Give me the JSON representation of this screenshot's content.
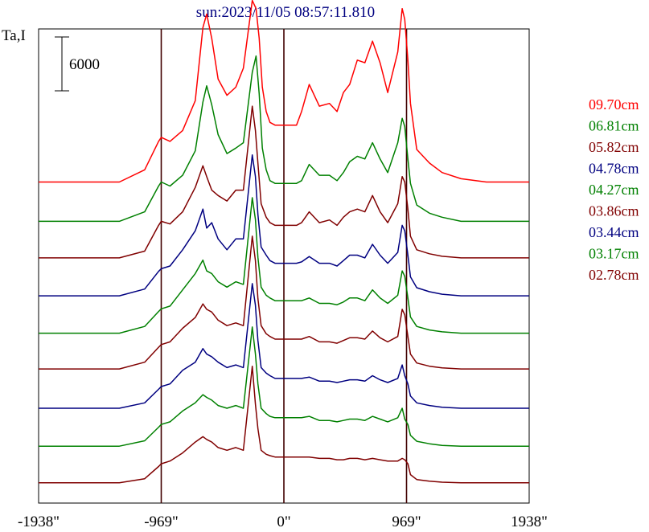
{
  "chart_data": {
    "type": "line",
    "title": "sun:2023/11/05 08:57:11.810",
    "ylabel": "Ta,I",
    "scale_bar_label": "6000",
    "xlim": [
      -1938,
      1938
    ],
    "x_ticks": [
      {
        "value": -1938,
        "label": "-1938\""
      },
      {
        "value": -969,
        "label": "-969\""
      },
      {
        "value": 0,
        "label": "0\""
      },
      {
        "value": 969,
        "label": "969\""
      },
      {
        "value": 1938,
        "label": "1938\""
      }
    ],
    "vertical_reference_lines": [
      -969,
      0,
      969
    ],
    "series": [
      {
        "name": "09.70cm",
        "color": "#ff0000",
        "x": [
          -1938,
          -1300,
          -1100,
          -990,
          -969,
          -900,
          -800,
          -700,
          -640,
          -610,
          -570,
          -520,
          -450,
          -380,
          -320,
          -250,
          -220,
          -195,
          -170,
          -140,
          -110,
          -70,
          -40,
          0,
          40,
          100,
          140,
          200,
          280,
          360,
          420,
          470,
          520,
          580,
          640,
          700,
          760,
          820,
          900,
          935,
          955,
          980,
          1000,
          1050,
          1150,
          1250,
          1400,
          1600,
          1938
        ],
        "y": [
          0,
          0,
          450,
          1500,
          1650,
          1500,
          1900,
          3000,
          5700,
          6200,
          5300,
          3800,
          3200,
          3500,
          4200,
          6700,
          6400,
          5300,
          3500,
          2600,
          2200,
          2100,
          2100,
          2100,
          2100,
          2100,
          2600,
          3600,
          2800,
          2900,
          2600,
          3300,
          3600,
          4500,
          4400,
          5200,
          4400,
          3300,
          4800,
          6400,
          6000,
          4500,
          2900,
          1200,
          700,
          350,
          120,
          0,
          0
        ]
      },
      {
        "name": "06.81cm",
        "color": "#008000",
        "x": [
          -1938,
          -1300,
          -1100,
          -990,
          -969,
          -900,
          -800,
          -700,
          -640,
          -610,
          -570,
          -520,
          -450,
          -380,
          -320,
          -250,
          -220,
          -195,
          -170,
          -140,
          -110,
          -70,
          -40,
          0,
          40,
          100,
          140,
          200,
          280,
          360,
          420,
          470,
          520,
          580,
          640,
          700,
          760,
          820,
          900,
          935,
          955,
          980,
          1000,
          1050,
          1150,
          1250,
          1400,
          1600,
          1938
        ],
        "y": [
          0,
          0,
          350,
          1300,
          1450,
          1300,
          1700,
          2600,
          4400,
          5000,
          4300,
          3200,
          2500,
          2700,
          2900,
          5500,
          6100,
          4700,
          2700,
          1900,
          1500,
          1400,
          1400,
          1400,
          1400,
          1400,
          1500,
          2100,
          1700,
          1700,
          1500,
          1800,
          2200,
          2400,
          2300,
          2900,
          2300,
          1800,
          2900,
          3800,
          3500,
          2300,
          1400,
          600,
          300,
          150,
          0,
          0,
          0
        ]
      },
      {
        "name": "05.82cm",
        "color": "#800000",
        "x": [
          -1938,
          -1300,
          -1100,
          -990,
          -969,
          -900,
          -800,
          -700,
          -640,
          -610,
          -570,
          -520,
          -450,
          -380,
          -320,
          -250,
          -225,
          -205,
          -180,
          -140,
          -110,
          -70,
          -40,
          0,
          40,
          100,
          140,
          200,
          280,
          360,
          420,
          470,
          520,
          580,
          640,
          700,
          760,
          820,
          900,
          935,
          955,
          980,
          1000,
          1050,
          1150,
          1250,
          1400,
          1600,
          1938
        ],
        "y": [
          0,
          0,
          250,
          1200,
          1350,
          1250,
          1700,
          2600,
          3400,
          3000,
          2500,
          2300,
          2100,
          2500,
          2500,
          5600,
          4700,
          3500,
          2000,
          1500,
          1300,
          1200,
          1200,
          1200,
          1200,
          1200,
          1300,
          1700,
          1300,
          1400,
          1200,
          1500,
          1700,
          1800,
          1700,
          2300,
          1700,
          1300,
          2000,
          3000,
          2800,
          1800,
          800,
          300,
          150,
          60,
          0,
          0,
          0
        ]
      },
      {
        "name": "04.78cm",
        "color": "#000080",
        "x": [
          -1938,
          -1300,
          -1100,
          -990,
          -969,
          -900,
          -800,
          -700,
          -640,
          -610,
          -570,
          -520,
          -450,
          -380,
          -320,
          -250,
          -225,
          -205,
          -180,
          -140,
          -110,
          -70,
          -40,
          0,
          40,
          100,
          140,
          200,
          280,
          360,
          420,
          470,
          520,
          580,
          640,
          700,
          760,
          820,
          900,
          935,
          955,
          980,
          1000,
          1050,
          1150,
          1250,
          1400,
          1600,
          1938
        ],
        "y": [
          0,
          0,
          250,
          900,
          1000,
          1100,
          1700,
          2400,
          3200,
          2500,
          2700,
          2100,
          1700,
          2100,
          2100,
          5200,
          4400,
          3000,
          1800,
          1500,
          1300,
          1200,
          1200,
          1200,
          1200,
          1200,
          1250,
          1450,
          1200,
          1200,
          1100,
          1300,
          1500,
          1500,
          1400,
          1900,
          1500,
          1200,
          1600,
          2600,
          2400,
          1500,
          700,
          300,
          150,
          60,
          0,
          0,
          0
        ]
      },
      {
        "name": "04.27cm",
        "color": "#008000",
        "x": [
          -1938,
          -1300,
          -1100,
          -990,
          -969,
          -900,
          -800,
          -700,
          -640,
          -610,
          -570,
          -520,
          -450,
          -380,
          -320,
          -250,
          -225,
          -205,
          -180,
          -140,
          -110,
          -70,
          -40,
          0,
          40,
          100,
          140,
          200,
          280,
          360,
          420,
          470,
          520,
          580,
          640,
          700,
          760,
          820,
          900,
          935,
          955,
          980,
          1000,
          1050,
          1150,
          1250,
          1400,
          1600,
          1938
        ],
        "y": [
          0,
          0,
          250,
          800,
          900,
          1000,
          1600,
          2200,
          2700,
          2300,
          2200,
          1900,
          1700,
          1900,
          1800,
          5000,
          4200,
          2800,
          1700,
          1400,
          1300,
          1200,
          1200,
          1200,
          1200,
          1200,
          1200,
          1300,
          1100,
          1100,
          1050,
          1150,
          1300,
          1300,
          1200,
          1600,
          1300,
          1100,
          1400,
          2300,
          2100,
          1300,
          600,
          250,
          120,
          50,
          0,
          0,
          0
        ]
      },
      {
        "name": "03.86cm",
        "color": "#800000",
        "x": [
          -1938,
          -1300,
          -1100,
          -990,
          -969,
          -900,
          -800,
          -700,
          -640,
          -610,
          -570,
          -520,
          -450,
          -380,
          -320,
          -250,
          -225,
          -205,
          -180,
          -140,
          -110,
          -70,
          -40,
          0,
          40,
          100,
          140,
          200,
          280,
          360,
          420,
          470,
          520,
          580,
          640,
          700,
          760,
          820,
          900,
          935,
          955,
          980,
          1000,
          1050,
          1150,
          1250,
          1400,
          1600,
          1938
        ],
        "y": [
          0,
          0,
          250,
          800,
          900,
          1000,
          1500,
          1900,
          2400,
          2200,
          2100,
          1800,
          1600,
          1700,
          1600,
          4900,
          4000,
          2600,
          1600,
          1300,
          1200,
          1100,
          1100,
          1100,
          1100,
          1100,
          1100,
          1200,
          1000,
          1000,
          950,
          1050,
          1150,
          1150,
          1100,
          1400,
          1150,
          1000,
          1200,
          2200,
          2000,
          1200,
          550,
          220,
          100,
          40,
          0,
          0,
          0
        ]
      },
      {
        "name": "03.44cm",
        "color": "#000080",
        "x": [
          -1938,
          -1300,
          -1100,
          -990,
          -969,
          -900,
          -800,
          -700,
          -640,
          -610,
          -570,
          -520,
          -450,
          -380,
          -320,
          -250,
          -225,
          -205,
          -180,
          -140,
          -110,
          -70,
          -40,
          0,
          40,
          100,
          140,
          200,
          280,
          360,
          420,
          470,
          520,
          580,
          640,
          700,
          760,
          820,
          900,
          935,
          955,
          980,
          1000,
          1050,
          1150,
          1250,
          1400,
          1600,
          1938
        ],
        "y": [
          0,
          0,
          200,
          700,
          800,
          900,
          1400,
          1700,
          2200,
          2000,
          1900,
          1700,
          1500,
          1600,
          1500,
          4600,
          3800,
          2500,
          1500,
          1300,
          1200,
          1100,
          1100,
          1100,
          1100,
          1100,
          1100,
          1150,
          1000,
          1000,
          950,
          1000,
          1050,
          1050,
          1000,
          1200,
          1050,
          950,
          1100,
          1600,
          1200,
          900,
          450,
          200,
          100,
          40,
          0,
          0,
          0
        ]
      },
      {
        "name": "03.17cm",
        "color": "#008000",
        "x": [
          -1938,
          -1300,
          -1100,
          -990,
          -969,
          -900,
          -800,
          -700,
          -640,
          -610,
          -570,
          -520,
          -450,
          -380,
          -320,
          -250,
          -225,
          -205,
          -180,
          -140,
          -110,
          -70,
          -40,
          0,
          40,
          100,
          140,
          200,
          280,
          360,
          420,
          470,
          520,
          580,
          640,
          700,
          760,
          820,
          900,
          935,
          955,
          980,
          1000,
          1050,
          1150,
          1250,
          1400,
          1600,
          1938
        ],
        "y": [
          0,
          0,
          200,
          700,
          800,
          900,
          1300,
          1600,
          1900,
          1800,
          1700,
          1500,
          1400,
          1500,
          1400,
          4400,
          3400,
          2300,
          1400,
          1200,
          1100,
          1050,
          1050,
          1050,
          1050,
          1050,
          1050,
          1100,
          950,
          950,
          900,
          950,
          1000,
          1000,
          950,
          1100,
          1000,
          900,
          1050,
          1400,
          1000,
          800,
          400,
          180,
          90,
          30,
          0,
          0,
          0
        ]
      },
      {
        "name": "02.78cm",
        "color": "#800000",
        "x": [
          -1938,
          -1300,
          -1100,
          -990,
          -969,
          -900,
          -800,
          -700,
          -640,
          -610,
          -570,
          -520,
          -450,
          -380,
          -320,
          -250,
          -225,
          -205,
          -180,
          -140,
          -110,
          -70,
          -40,
          0,
          40,
          100,
          140,
          200,
          280,
          360,
          420,
          470,
          520,
          580,
          640,
          700,
          760,
          820,
          900,
          935,
          955,
          980,
          1000,
          1050,
          1150,
          1250,
          1400,
          1600,
          1938
        ],
        "y": [
          0,
          0,
          150,
          600,
          700,
          800,
          1100,
          1500,
          1700,
          1600,
          1500,
          1300,
          1200,
          1300,
          1200,
          4300,
          2900,
          2000,
          1200,
          1050,
          1000,
          950,
          950,
          950,
          950,
          950,
          950,
          950,
          900,
          900,
          850,
          850,
          900,
          900,
          850,
          900,
          850,
          800,
          800,
          900,
          850,
          700,
          300,
          120,
          60,
          20,
          0,
          0,
          0
        ]
      }
    ],
    "baselines_ta": [
      7350,
      5900,
      4550,
      3150,
      1770,
      450,
      -1000,
      -2400,
      -3750
    ],
    "ta_range": [
      -4500,
      13000
    ],
    "grid": false,
    "legend_position": "right"
  }
}
